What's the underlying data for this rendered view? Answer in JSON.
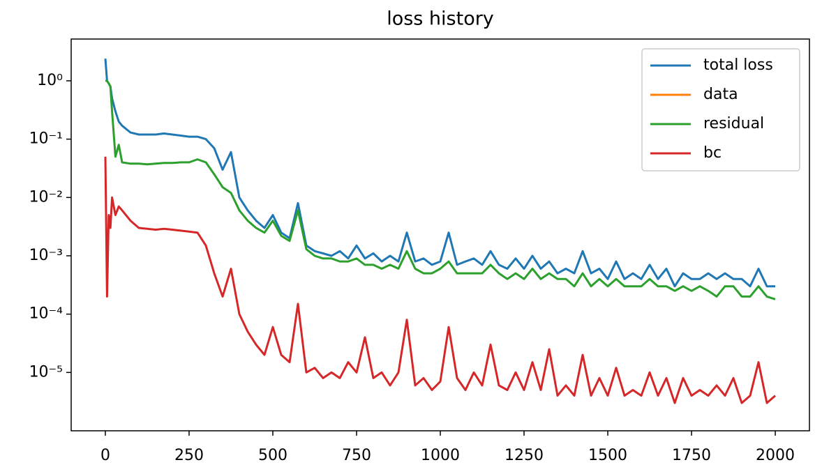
{
  "chart_data": {
    "type": "line",
    "title": "loss history",
    "x": [
      0,
      5,
      10,
      15,
      20,
      30,
      40,
      50,
      75,
      100,
      125,
      150,
      175,
      200,
      225,
      250,
      275,
      300,
      325,
      350,
      375,
      400,
      425,
      450,
      475,
      500,
      525,
      550,
      575,
      600,
      625,
      650,
      675,
      700,
      725,
      750,
      775,
      800,
      825,
      850,
      875,
      900,
      925,
      950,
      975,
      1000,
      1025,
      1050,
      1075,
      1100,
      1125,
      1150,
      1175,
      1200,
      1225,
      1250,
      1275,
      1300,
      1325,
      1350,
      1375,
      1400,
      1425,
      1450,
      1475,
      1500,
      1525,
      1550,
      1575,
      1600,
      1625,
      1650,
      1675,
      1700,
      1725,
      1750,
      1775,
      1800,
      1825,
      1850,
      1875,
      1900,
      1925,
      1950,
      1975,
      2000
    ],
    "series": [
      {
        "name": "total loss",
        "color": "#1f77b4",
        "values": [
          2.4,
          1.0,
          0.9,
          0.8,
          0.5,
          0.3,
          0.2,
          0.17,
          0.13,
          0.12,
          0.12,
          0.12,
          0.125,
          0.12,
          0.115,
          0.11,
          0.11,
          0.1,
          0.07,
          0.03,
          0.06,
          0.01,
          0.006,
          0.004,
          0.003,
          0.005,
          0.0025,
          0.002,
          0.008,
          0.0015,
          0.0012,
          0.0011,
          0.001,
          0.0012,
          0.0009,
          0.0015,
          0.0009,
          0.0011,
          0.0008,
          0.001,
          0.0008,
          0.0025,
          0.0008,
          0.0009,
          0.0007,
          0.0008,
          0.0025,
          0.0007,
          0.0008,
          0.0009,
          0.0007,
          0.0012,
          0.0007,
          0.0006,
          0.0009,
          0.0006,
          0.001,
          0.0006,
          0.0008,
          0.0005,
          0.0006,
          0.0005,
          0.0012,
          0.0005,
          0.0006,
          0.0004,
          0.0008,
          0.0004,
          0.0005,
          0.0004,
          0.0007,
          0.0004,
          0.0006,
          0.0003,
          0.0005,
          0.0004,
          0.0004,
          0.0005,
          0.0004,
          0.0005,
          0.0004,
          0.0004,
          0.0003,
          0.0006,
          0.0003,
          0.0003
        ]
      },
      {
        "name": "data",
        "color": "#ff7f0e",
        "values": [
          null,
          null,
          null,
          null,
          null,
          null,
          null,
          null,
          null,
          null,
          null,
          null,
          null,
          null,
          null,
          null,
          null,
          null,
          null,
          null,
          null,
          null,
          null,
          null,
          null,
          null,
          null,
          null,
          null,
          null,
          null,
          null,
          null,
          null,
          null,
          null,
          null,
          null,
          null,
          null,
          null,
          null,
          null,
          null,
          null,
          null,
          null,
          null,
          null,
          null,
          null,
          null,
          null,
          null,
          null,
          null,
          null,
          null,
          null,
          null,
          null,
          null,
          null,
          null,
          null,
          null,
          null,
          null,
          null,
          null,
          null,
          null,
          null,
          null,
          null,
          null,
          null,
          null,
          null,
          null,
          null,
          null,
          null,
          null,
          null,
          null
        ]
      },
      {
        "name": "residual",
        "color": "#2ca02c",
        "values": [
          1.0,
          1.0,
          0.9,
          0.8,
          0.3,
          0.05,
          0.08,
          0.04,
          0.038,
          0.038,
          0.037,
          0.038,
          0.039,
          0.039,
          0.04,
          0.04,
          0.045,
          0.04,
          0.025,
          0.015,
          0.012,
          0.006,
          0.004,
          0.003,
          0.0025,
          0.004,
          0.0022,
          0.0018,
          0.006,
          0.0013,
          0.001,
          0.0009,
          0.0009,
          0.0008,
          0.0008,
          0.0009,
          0.0007,
          0.0007,
          0.0006,
          0.0007,
          0.0006,
          0.0012,
          0.0006,
          0.0005,
          0.0005,
          0.0006,
          0.0008,
          0.0005,
          0.0005,
          0.0005,
          0.0005,
          0.0007,
          0.0005,
          0.0004,
          0.0005,
          0.0004,
          0.0006,
          0.0004,
          0.0005,
          0.0004,
          0.0004,
          0.0003,
          0.0005,
          0.0003,
          0.0004,
          0.0003,
          0.0004,
          0.0003,
          0.0003,
          0.0003,
          0.0004,
          0.0003,
          0.0003,
          0.00025,
          0.0003,
          0.00025,
          0.0003,
          0.00025,
          0.0002,
          0.0003,
          0.0003,
          0.0002,
          0.0002,
          0.0003,
          0.0002,
          0.00018
        ]
      },
      {
        "name": "bc",
        "color": "#d62728",
        "values": [
          0.05,
          0.0002,
          0.005,
          0.003,
          0.01,
          0.005,
          0.007,
          0.006,
          0.004,
          0.003,
          0.0029,
          0.0028,
          0.0029,
          0.0028,
          0.0027,
          0.0026,
          0.0025,
          0.0015,
          0.0005,
          0.0002,
          0.0006,
          0.0001,
          5e-05,
          3e-05,
          2e-05,
          6e-05,
          2e-05,
          1.5e-05,
          0.00015,
          1e-05,
          1.2e-05,
          8e-06,
          1e-05,
          8e-06,
          1.5e-05,
          1e-05,
          4e-05,
          8e-06,
          1e-05,
          6e-06,
          1e-05,
          8e-05,
          6e-06,
          8e-06,
          5e-06,
          7e-06,
          6e-05,
          8e-06,
          5e-06,
          1e-05,
          6e-06,
          3e-05,
          6e-06,
          5e-06,
          1e-05,
          5e-06,
          1.5e-05,
          5e-06,
          2.5e-05,
          4e-06,
          6e-06,
          4e-06,
          2e-05,
          4e-06,
          8e-06,
          4e-06,
          1.2e-05,
          4e-06,
          5e-06,
          4e-06,
          1e-05,
          4e-06,
          8e-06,
          3e-06,
          8e-06,
          4e-06,
          5e-06,
          4e-06,
          6e-06,
          4e-06,
          8e-06,
          3e-06,
          4e-06,
          1.5e-05,
          3e-06,
          4e-06
        ]
      }
    ],
    "xlim": [
      -102,
      2102
    ],
    "xticks": [
      0,
      250,
      500,
      750,
      1000,
      1250,
      1500,
      1750,
      2000
    ],
    "ylim": [
      1e-06,
      5.2
    ],
    "log_y": true,
    "yticks": [
      {
        "value": 1,
        "label": "10⁰"
      },
      {
        "value": 0.1,
        "label": "10⁻¹"
      },
      {
        "value": 0.01,
        "label": "10⁻²"
      },
      {
        "value": 0.001,
        "label": "10⁻³"
      },
      {
        "value": 0.0001,
        "label": "10⁻⁴"
      },
      {
        "value": 1e-05,
        "label": "10⁻⁵"
      }
    ],
    "legend": "upper right",
    "grid": false
  }
}
